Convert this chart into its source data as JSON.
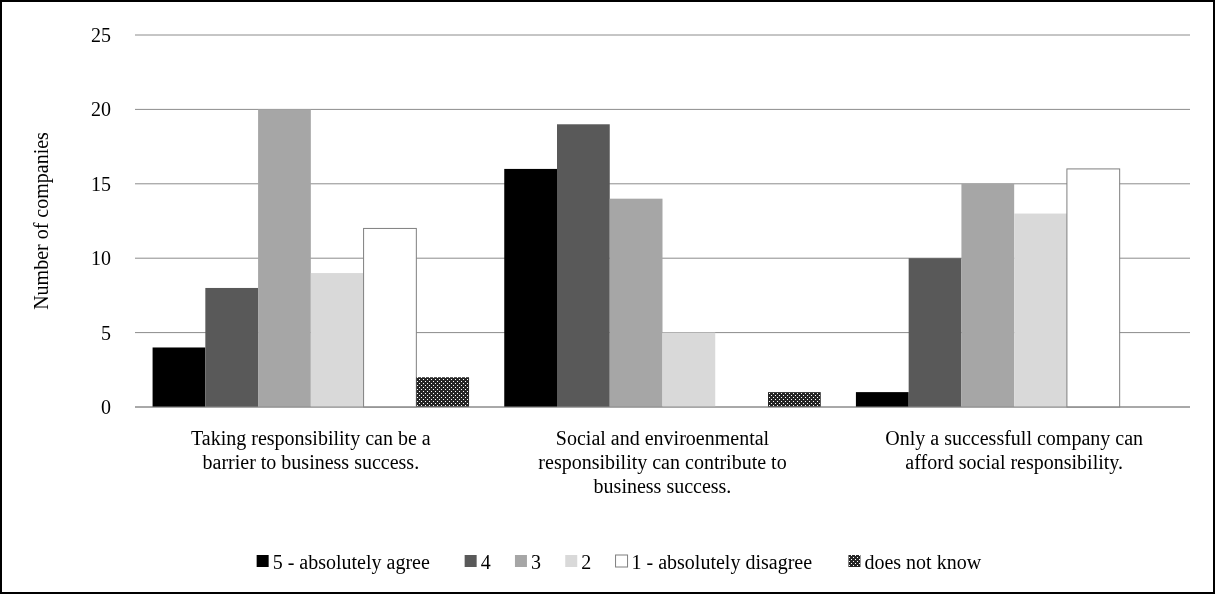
{
  "chart_data": {
    "type": "bar",
    "ylabel": "Number of companies",
    "categories": [
      "Taking responsibility can be a barrier to business success.",
      "Social and enviroenmental responsibility can contribute to business success.",
      "Only a successfull company can afford social responsibility."
    ],
    "series": [
      {
        "name": "5 - absolutely agree",
        "color": "#000000",
        "values": [
          4,
          16,
          1
        ]
      },
      {
        "name": "4",
        "color": "#595959",
        "values": [
          8,
          19,
          10
        ]
      },
      {
        "name": "3",
        "color": "#a6a6a6",
        "values": [
          20,
          14,
          15
        ]
      },
      {
        "name": "2",
        "color": "#d9d9d9",
        "values": [
          9,
          5,
          13
        ]
      },
      {
        "name": "1 - absolutely disagree",
        "color": "#ffffff",
        "values": [
          12,
          0,
          16
        ]
      },
      {
        "name": "does not know",
        "color": "#262626",
        "values": [
          2,
          1,
          0
        ]
      }
    ],
    "ylim": [
      0,
      25
    ],
    "yticks": [
      0,
      5,
      10,
      15,
      20,
      25
    ],
    "grid": "y",
    "legend": "bottom"
  }
}
